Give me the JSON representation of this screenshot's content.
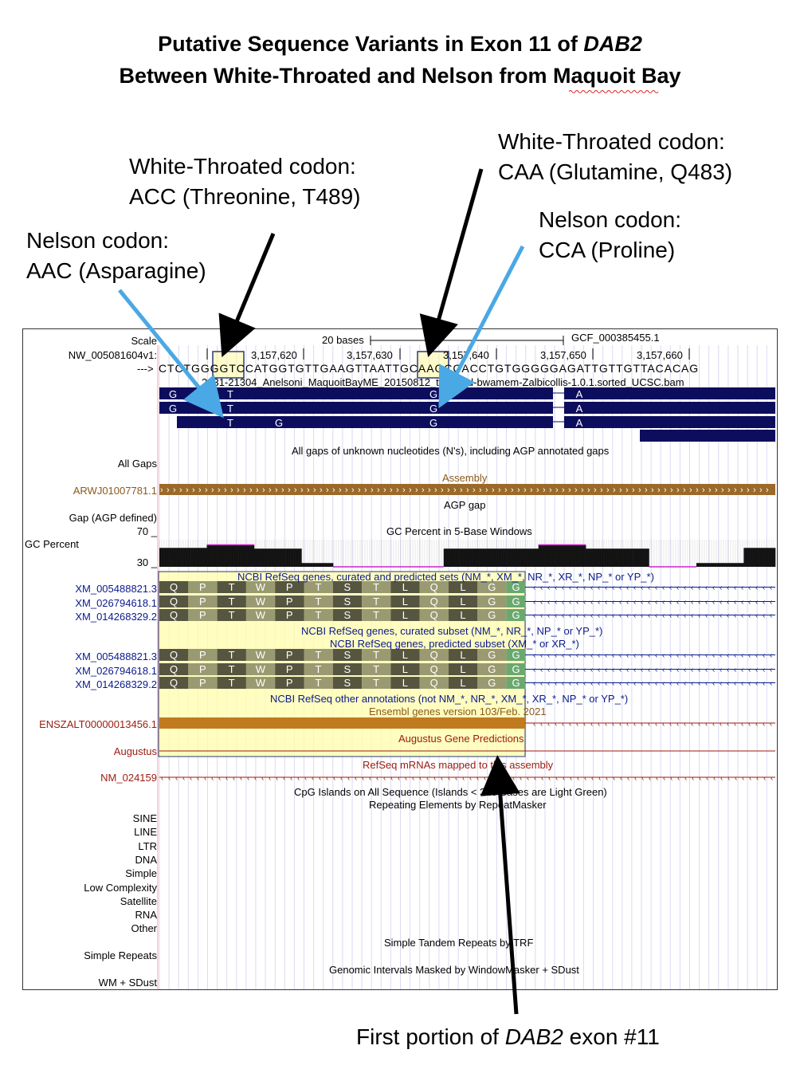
{
  "title": {
    "line1_prefix": "Putative Sequence Variants in Exon 11 of ",
    "line1_gene": "DAB2",
    "line2": "Between White-Throated and Nelson from Maquoit Bay"
  },
  "annotations": {
    "wt_codon_left_1": "White-Throated codon:",
    "wt_codon_left_2": "ACC (Threonine, T489)",
    "nelson_codon_left_1": "Nelson codon:",
    "nelson_codon_left_2": "AAC (Asparagine)",
    "wt_codon_right_1": "White-Throated codon:",
    "wt_codon_right_2": "CAA (Glutamine, Q483)",
    "nelson_codon_right_1": "Nelson codon:",
    "nelson_codon_right_2": "CCA (Proline)",
    "exon_prefix": "First portion of ",
    "exon_gene": "DAB2",
    "exon_suffix": " exon #11"
  },
  "browser": {
    "scale_label": "Scale",
    "scale_text": "20 bases",
    "assembly_id": "GCF_000385455.1",
    "chrom_label": "NW_005081604v1:",
    "positions": [
      "3,157,620",
      "3,157,630",
      "3,157,640",
      "3,157,650",
      "3,157,660"
    ],
    "strand_arrow": "--->",
    "sequence": "CTCTGGGGTCCATGGTGTTGAAGTTAATTGCAAGCCACCTGTGGGGGAGATTGTTGTTACACAG",
    "bam_track": "2631-21304_Anelsoni_MaquoitBayME_20150812_trimmed-bwamem-Zalbicollis-1.0.1.sorted_UCSC.bam",
    "read_bases": {
      "row1": [
        "G",
        "T",
        "G",
        "A"
      ],
      "row2": [
        "G",
        "T",
        "G",
        "A"
      ],
      "row3": [
        "T",
        "G",
        "G",
        "A"
      ]
    },
    "gaps_title": "All gaps of unknown nucleotides (N's), including AGP annotated gaps",
    "all_gaps_label": "All Gaps",
    "assembly_title": "Assembly",
    "assembly_label": "ARWJ01007781.1",
    "agp_title": "AGP gap",
    "agp_label": "Gap (AGP defined)",
    "gc_title": "GC Percent in 5-Base Windows",
    "gc_label": "GC Percent",
    "gc_max": "70 _",
    "gc_min": "30 _",
    "refseq_all_title": "NCBI RefSeq genes, curated and predicted sets (NM_*, XM_*, NR_*, XR_*, NP_* or YP_*)",
    "refseq_curated_title": "NCBI RefSeq genes, curated subset (NM_*, NR_*, NP_* or YP_*)",
    "refseq_predicted_title": "NCBI RefSeq genes, predicted subset (XM_* or XR_*)",
    "transcripts": [
      "XM_005488821.3",
      "XM_026794618.1",
      "XM_014268329.2"
    ],
    "amino_acids": [
      "Q",
      "P",
      "T",
      "W",
      "P",
      "T",
      "S",
      "T",
      "L",
      "Q",
      "L",
      "G",
      "G"
    ],
    "refseq_other_title": "NCBI RefSeq other annotations (not NM_*, NR_*, XM_*, XR_*, NP_* or YP_*)",
    "ensembl_title": "Ensembl genes version 103/Feb. 2021",
    "ensembl_label": "ENSZALT00000013456.1",
    "augustus_title": "Augustus Gene Predictions",
    "augustus_label": "Augustus",
    "refseq_mrna_title": "RefSeq mRNAs mapped to this assembly",
    "refseq_mrna_label": "NM_024159",
    "cpg_title": "CpG Islands on All Sequence (Islands < 300 Bases are Light Green)",
    "repeat_title": "Repeating Elements by RepeatMasker",
    "repeat_classes": [
      "SINE",
      "LINE",
      "LTR",
      "DNA",
      "Simple",
      "Low Complexity",
      "Satellite",
      "RNA",
      "Other"
    ],
    "trf_title": "Simple Tandem Repeats by TRF",
    "trf_label": "Simple Repeats",
    "wm_title": "Genomic Intervals Masked by WindowMasker + SDust",
    "wm_label": "WM + SDust"
  },
  "gc_percent": {
    "range": [
      30,
      70
    ],
    "values": [
      55,
      55,
      55,
      59,
      59,
      59,
      54,
      54,
      54,
      35,
      35,
      30,
      30,
      30,
      30,
      30,
      30,
      30,
      54,
      54,
      54,
      54,
      54,
      54,
      59,
      59,
      59,
      54,
      54,
      54,
      54,
      30,
      30,
      30,
      35,
      35,
      35,
      55,
      55
    ]
  },
  "colors": {
    "read_bar": "#0d0d5e",
    "assembly_bar": "#9b6a2a",
    "ensembl_bar": "#c17a20",
    "refseq_blue": "#0a1a8c",
    "highlight_yellow": "#fffcb0",
    "arrow_black": "#000000",
    "arrow_blue": "#4aa8e4",
    "aa_dark": "#555540",
    "aa_light": "#9a9a72",
    "aa_green": "#6aa870",
    "codon_box": "#2a3a7a"
  }
}
